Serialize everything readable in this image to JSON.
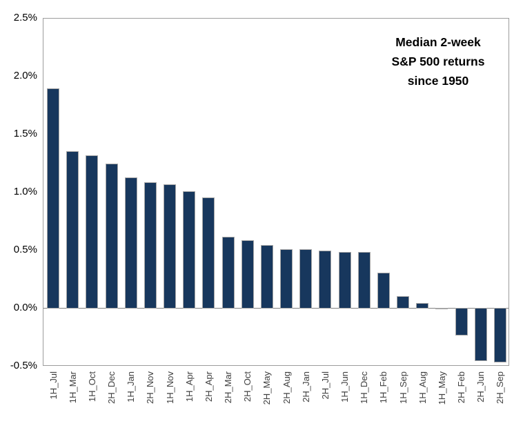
{
  "chart_data": {
    "type": "bar",
    "title": "Median 2-week S&P 500 returns since 1950",
    "title_lines": [
      "Median 2-week",
      "S&P 500 returns",
      "since 1950"
    ],
    "categories": [
      "1H_Jul",
      "1H_Mar",
      "1H_Oct",
      "2H_Dec",
      "1H_Jan",
      "2H_Nov",
      "1H_Nov",
      "1H_Apr",
      "2H_Apr",
      "2H_Mar",
      "2H_Oct",
      "2H_May",
      "2H_Aug",
      "2H_Jan",
      "2H_Jul",
      "1H_Jun",
      "1H_Dec",
      "1H_Feb",
      "1H_Sep",
      "1H_Aug",
      "1H_May",
      "2H_Feb",
      "2H_Jun",
      "2H_Sep"
    ],
    "values": [
      1.9,
      1.36,
      1.32,
      1.25,
      1.13,
      1.09,
      1.07,
      1.01,
      0.96,
      0.62,
      0.59,
      0.55,
      0.51,
      0.51,
      0.5,
      0.49,
      0.49,
      0.31,
      0.11,
      0.05,
      -0.01,
      -0.24,
      -0.46,
      -0.47
    ],
    "unit": "%",
    "xlabel": "",
    "ylabel": "",
    "ylim": [
      -0.5,
      2.5
    ],
    "ytick_values": [
      2.5,
      2.0,
      1.5,
      1.0,
      0.5,
      0.0,
      -0.5
    ],
    "ytick_labels": [
      "2.5%",
      "2.0%",
      "1.5%",
      "1.0%",
      "0.5%",
      "0.0%",
      "-0.5%"
    ],
    "grid": "off",
    "legend": null,
    "colors": {
      "bar_fill": "#17375D",
      "bar_border": "#A6A6A6",
      "plot_border": "#9C9C9C",
      "zero_line": "#808080",
      "ytick_text": "#000000",
      "xtick_text": "#3F3F3F",
      "title_text": "#000000",
      "background": "#FFFFFF"
    }
  }
}
